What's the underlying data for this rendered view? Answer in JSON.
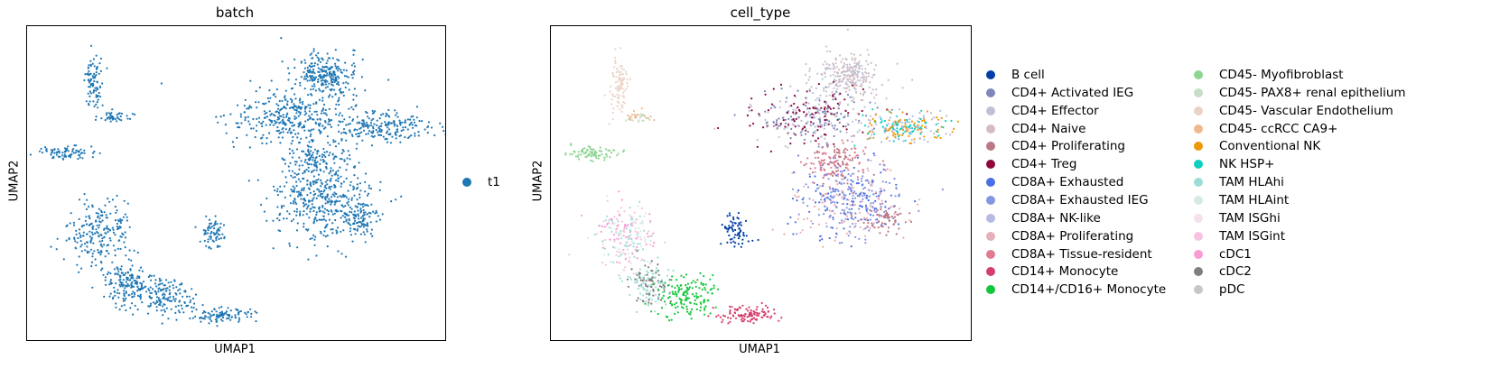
{
  "chart_data": [
    {
      "type": "scatter",
      "title": "batch",
      "xlabel": "UMAP1",
      "ylabel": "UMAP2",
      "grid": false,
      "legend_position": "right",
      "series": [
        {
          "name": "t1",
          "color": "#1f77b4"
        }
      ]
    },
    {
      "type": "scatter",
      "title": "cell_type",
      "xlabel": "UMAP1",
      "ylabel": "UMAP2",
      "grid": false,
      "legend_position": "right",
      "series": [
        {
          "name": "B cell",
          "color": "#023fa5"
        },
        {
          "name": "CD4+ Activated IEG",
          "color": "#7d87b9"
        },
        {
          "name": "CD4+ Effector",
          "color": "#bec1d4"
        },
        {
          "name": "CD4+ Naive",
          "color": "#d6bcc0"
        },
        {
          "name": "CD4+ Proliferating",
          "color": "#bb7784"
        },
        {
          "name": "CD4+ Treg",
          "color": "#8e063b"
        },
        {
          "name": "CD8A+ Exhausted",
          "color": "#4a6fe3"
        },
        {
          "name": "CD8A+ Exhausted IEG",
          "color": "#8595e1"
        },
        {
          "name": "CD8A+ NK-like",
          "color": "#b5bbe3"
        },
        {
          "name": "CD8A+ Proliferating",
          "color": "#e6afb9"
        },
        {
          "name": "CD8A+ Tissue-resident",
          "color": "#e07b91"
        },
        {
          "name": "CD14+ Monocyte",
          "color": "#d33f6a"
        },
        {
          "name": "CD14+/CD16+ Monocyte",
          "color": "#11c638"
        },
        {
          "name": "CD45- Myofibroblast",
          "color": "#8dd593"
        },
        {
          "name": "CD45- PAX8+ renal epithelium",
          "color": "#c6dec7"
        },
        {
          "name": "CD45- Vascular Endothelium",
          "color": "#ead3c6"
        },
        {
          "name": "CD45- ccRCC CA9+",
          "color": "#f0b98d"
        },
        {
          "name": "Conventional NK",
          "color": "#ef9708"
        },
        {
          "name": "NK HSP+",
          "color": "#0fcfc0"
        },
        {
          "name": "TAM HLAhi",
          "color": "#9cded6"
        },
        {
          "name": "TAM HLAint",
          "color": "#d5eae7"
        },
        {
          "name": "TAM ISGhi",
          "color": "#f3e1eb"
        },
        {
          "name": "TAM ISGint",
          "color": "#f6c4e1"
        },
        {
          "name": "cDC1",
          "color": "#f79cd4"
        },
        {
          "name": "cDC2",
          "color": "#7f7f7f"
        },
        {
          "name": "pDC",
          "color": "#c7c7c7"
        }
      ]
    }
  ]
}
